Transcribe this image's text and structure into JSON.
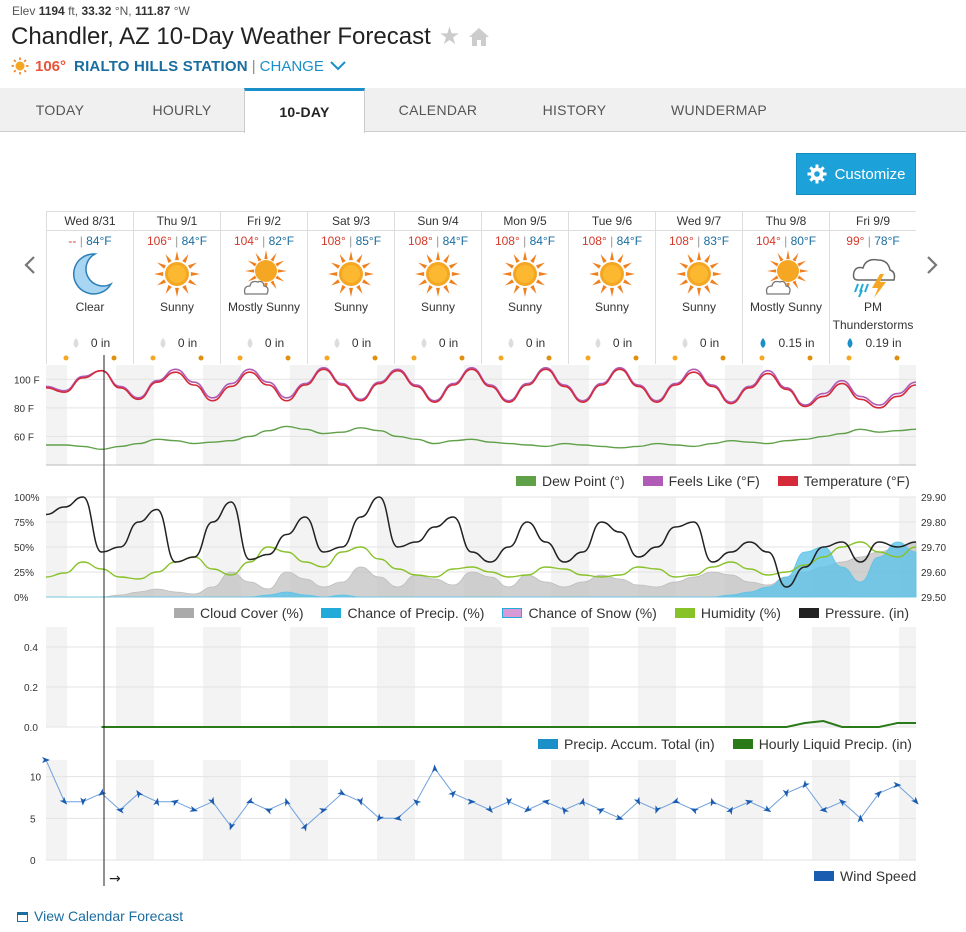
{
  "elev": {
    "label": "Elev",
    "value": "1194",
    "unit": "ft,",
    "lat": "33.32",
    "lat_dir": "°N,",
    "lon": "111.87",
    "lon_dir": "°W"
  },
  "title": "Chandler, AZ 10-Day Weather Forecast",
  "current": {
    "temp": "106°",
    "station": "RIALTO HILLS STATION",
    "separator": "|",
    "change": "CHANGE"
  },
  "tabs": [
    {
      "label": "TODAY"
    },
    {
      "label": "HOURLY"
    },
    {
      "label": "10-DAY"
    },
    {
      "label": "CALENDAR"
    },
    {
      "label": "HISTORY"
    },
    {
      "label": "WUNDERMAP"
    }
  ],
  "customize_label": "Customize",
  "days": [
    {
      "date": "Wed 8/31",
      "hi": "--",
      "lo": "84°F",
      "cond": "Clear",
      "precip": "0 in",
      "icon": "moon-icon"
    },
    {
      "date": "Thu 9/1",
      "hi": "106°",
      "lo": "84°F",
      "cond": "Sunny",
      "precip": "0 in",
      "icon": "sun-icon"
    },
    {
      "date": "Fri 9/2",
      "hi": "104°",
      "lo": "82°F",
      "cond": "Mostly Sunny",
      "precip": "0 in",
      "icon": "mostly-sunny-icon"
    },
    {
      "date": "Sat 9/3",
      "hi": "108°",
      "lo": "85°F",
      "cond": "Sunny",
      "precip": "0 in",
      "icon": "sun-icon"
    },
    {
      "date": "Sun 9/4",
      "hi": "108°",
      "lo": "84°F",
      "cond": "Sunny",
      "precip": "0 in",
      "icon": "sun-icon"
    },
    {
      "date": "Mon 9/5",
      "hi": "108°",
      "lo": "84°F",
      "cond": "Sunny",
      "precip": "0 in",
      "icon": "sun-icon"
    },
    {
      "date": "Tue 9/6",
      "hi": "108°",
      "lo": "84°F",
      "cond": "Sunny",
      "precip": "0 in",
      "icon": "sun-icon"
    },
    {
      "date": "Wed 9/7",
      "hi": "108°",
      "lo": "83°F",
      "cond": "Sunny",
      "precip": "0 in",
      "icon": "sun-icon"
    },
    {
      "date": "Thu 9/8",
      "hi": "104°",
      "lo": "80°F",
      "cond": "Mostly Sunny",
      "precip": "0.15 in",
      "icon": "mostly-sunny-icon"
    },
    {
      "date": "Fri 9/9",
      "hi": "99°",
      "lo": "78°F",
      "cond": "PM Thunderstorms",
      "precip": "0.19 in",
      "icon": "thunderstorm-icon"
    }
  ],
  "chart_data": [
    {
      "type": "line",
      "ylim": [
        40,
        110
      ],
      "yticks": [
        {
          "v": 100,
          "label": "100 F"
        },
        {
          "v": 80,
          "label": "80 F"
        },
        {
          "v": 60,
          "label": "60 F"
        }
      ],
      "series": [
        {
          "name": "Dew Point (°)",
          "color": "#5fa049",
          "values": [
            54,
            54,
            53,
            51,
            53,
            55,
            58,
            57,
            55,
            56,
            57,
            60,
            64,
            67,
            65,
            62,
            63,
            66,
            64,
            60,
            58,
            55,
            57,
            58,
            56,
            55,
            54,
            53,
            55,
            54,
            53,
            52,
            53,
            55,
            54,
            53,
            55,
            57,
            56,
            55,
            57,
            58,
            60,
            62,
            65,
            63,
            64,
            65
          ]
        },
        {
          "name": "Feels Like (°F)",
          "color": "#b05bb5",
          "values": [
            95,
            92,
            102,
            106,
            95,
            87,
            99,
            107,
            98,
            87,
            97,
            107,
            98,
            87,
            97,
            108,
            97,
            86,
            98,
            107,
            96,
            85,
            97,
            108,
            96,
            85,
            97,
            108,
            96,
            85,
            97,
            108,
            96,
            85,
            97,
            107,
            96,
            84,
            95,
            106,
            94,
            82,
            90,
            99,
            88,
            82,
            90,
            98
          ]
        },
        {
          "name": "Temperature (°F)",
          "color": "#d42a3a",
          "values": [
            94,
            91,
            101,
            106,
            94,
            86,
            98,
            105,
            96,
            85,
            95,
            105,
            96,
            85,
            96,
            107,
            96,
            85,
            97,
            106,
            95,
            84,
            96,
            107,
            95,
            84,
            96,
            107,
            95,
            84,
            96,
            107,
            95,
            84,
            96,
            105,
            95,
            83,
            94,
            104,
            93,
            81,
            88,
            97,
            86,
            80,
            88,
            96
          ]
        }
      ],
      "legend": [
        "Dew Point (°)",
        "Feels Like (°F)",
        "Temperature (°F)"
      ]
    },
    {
      "type": "area",
      "ylim": [
        0,
        100
      ],
      "y2lim": [
        29.5,
        29.9
      ],
      "yticks": [
        "100%",
        "75%",
        "50%",
        "25%",
        "0%"
      ],
      "y2ticks": [
        "29.90",
        "29.80",
        "29.70",
        "29.60",
        "29.50"
      ],
      "series": [
        {
          "name": "Cloud Cover (%)",
          "color": "#aaaaaa",
          "values": [
            0,
            0,
            0,
            0,
            2,
            5,
            8,
            5,
            3,
            10,
            25,
            15,
            8,
            25,
            18,
            10,
            15,
            30,
            20,
            10,
            22,
            18,
            12,
            25,
            20,
            10,
            22,
            15,
            10,
            15,
            22,
            18,
            12,
            10,
            15,
            20,
            25,
            22,
            15,
            12,
            20,
            25,
            30,
            35,
            40,
            45,
            50,
            55
          ]
        },
        {
          "name": "Chance of Precip. (%)",
          "color": "#22aad8",
          "values": [
            0,
            0,
            0,
            0,
            0,
            0,
            0,
            0,
            0,
            0,
            0,
            0,
            2,
            5,
            2,
            0,
            2,
            0,
            0,
            0,
            0,
            0,
            0,
            0,
            0,
            0,
            0,
            0,
            0,
            0,
            0,
            0,
            0,
            0,
            0,
            0,
            0,
            2,
            5,
            10,
            20,
            45,
            50,
            30,
            15,
            40,
            55,
            45
          ]
        },
        {
          "name": "Chance of Snow (%)",
          "color": "#d69ad6",
          "values": []
        },
        {
          "name": "Humidity (%)",
          "color": "#88c229",
          "values": [
            20,
            24,
            35,
            28,
            20,
            18,
            25,
            35,
            40,
            28,
            22,
            35,
            50,
            45,
            35,
            30,
            45,
            50,
            38,
            28,
            22,
            20,
            28,
            30,
            25,
            20,
            22,
            30,
            28,
            22,
            20,
            22,
            30,
            28,
            20,
            22,
            30,
            35,
            28,
            22,
            25,
            32,
            40,
            50,
            55,
            45,
            40,
            50
          ]
        },
        {
          "name": "Pressure. (in)",
          "color": "#222222",
          "values": [
            29.83,
            29.86,
            29.9,
            29.68,
            29.7,
            29.8,
            29.85,
            29.64,
            29.66,
            29.8,
            29.88,
            29.65,
            29.67,
            29.75,
            29.82,
            29.68,
            29.7,
            29.82,
            29.9,
            29.7,
            29.72,
            29.78,
            29.82,
            29.68,
            29.64,
            29.7,
            29.8,
            29.72,
            29.64,
            29.68,
            29.8,
            29.76,
            29.66,
            29.7,
            29.78,
            29.8,
            29.64,
            29.68,
            29.72,
            29.68,
            29.54,
            29.62,
            29.7,
            29.72,
            29.64,
            29.72,
            29.7,
            29.72
          ]
        }
      ],
      "legend": [
        "Cloud Cover (%)",
        "Chance of Precip. (%)",
        "Chance of Snow (%)",
        "Humidity (%)",
        "Pressure. (in)"
      ]
    },
    {
      "type": "line",
      "ylim": [
        0,
        0.5
      ],
      "yticks": [
        "0.4",
        "0.2",
        "0.0"
      ],
      "series": [
        {
          "name": "Precip. Accum. Total (in)",
          "color": "#1b8fc7",
          "values": []
        },
        {
          "name": "Hourly Liquid Precip. (in)",
          "color": "#2b7a1a",
          "values": [
            0,
            0,
            0,
            0,
            0,
            0,
            0,
            0,
            0,
            0,
            0,
            0,
            0,
            0,
            0,
            0,
            0,
            0,
            0,
            0,
            0,
            0,
            0,
            0,
            0,
            0,
            0,
            0,
            0,
            0,
            0,
            0,
            0,
            0,
            0,
            0,
            0,
            0,
            0,
            0,
            0,
            0.02,
            0.03,
            0,
            0,
            0,
            0.02,
            0.02
          ]
        }
      ],
      "legend": [
        "Precip. Accum. Total (in)",
        "Hourly Liquid Precip. (in)"
      ]
    },
    {
      "type": "line",
      "ylim": [
        0,
        12
      ],
      "yticks": [
        "10",
        "5",
        "0"
      ],
      "series": [
        {
          "name": "Wind Speed",
          "color": "#1a5cb0",
          "values": [
            12,
            7,
            7,
            8,
            6,
            8,
            7,
            7,
            6,
            7,
            4,
            7,
            6,
            7,
            4,
            6,
            8,
            7,
            5,
            5,
            7,
            11,
            8,
            7,
            6,
            7,
            6,
            7,
            6,
            7,
            6,
            5,
            7,
            6,
            7,
            6,
            7,
            6,
            7,
            6,
            8,
            9,
            6,
            7,
            5,
            8,
            9,
            7
          ]
        }
      ],
      "legend": [
        "Wind Speed"
      ]
    }
  ],
  "footer_link": "View Calendar Forecast",
  "colors": {
    "accent": "#1da1d9",
    "hi": "#d43a2a",
    "lo": "#1a6d9f"
  }
}
